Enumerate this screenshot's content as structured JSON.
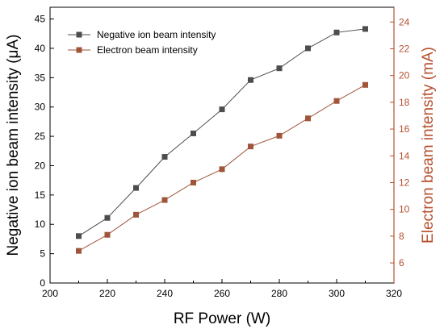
{
  "chart_data": {
    "type": "line",
    "x": [
      210,
      220,
      230,
      240,
      250,
      260,
      270,
      280,
      290,
      300,
      310
    ],
    "series": [
      {
        "name": "Negative ion beam intensity",
        "axis": "left",
        "marker": "square",
        "color": "#4d4d4d",
        "values": [
          8.0,
          11.1,
          16.2,
          21.5,
          25.5,
          29.6,
          34.6,
          36.6,
          40.0,
          42.7,
          43.3
        ]
      },
      {
        "name": "Electron beam intensity",
        "axis": "right",
        "marker": "square",
        "color": "#a0553a",
        "values": [
          6.9,
          8.1,
          9.6,
          10.7,
          12.0,
          13.0,
          14.7,
          15.5,
          16.8,
          18.1,
          19.3
        ]
      }
    ],
    "xlabel": "RF Power (W)",
    "ylabel_left": "Negative ion beam intensity (μA)",
    "ylabel_right": "Electron beam intensity (mA)",
    "xlim": [
      200,
      320
    ],
    "ylim_left": [
      0,
      47
    ],
    "ylim_right": [
      4.5,
      25.1
    ],
    "xticks": [
      200,
      220,
      240,
      260,
      280,
      300,
      320
    ],
    "yticks_left": [
      0,
      5,
      10,
      15,
      20,
      25,
      30,
      35,
      40,
      45
    ],
    "yticks_right": [
      6,
      8,
      10,
      12,
      14,
      16,
      18,
      20,
      22,
      24
    ],
    "right_axis_color": "#b5502f",
    "legend_position": "top-left",
    "grid": false
  }
}
